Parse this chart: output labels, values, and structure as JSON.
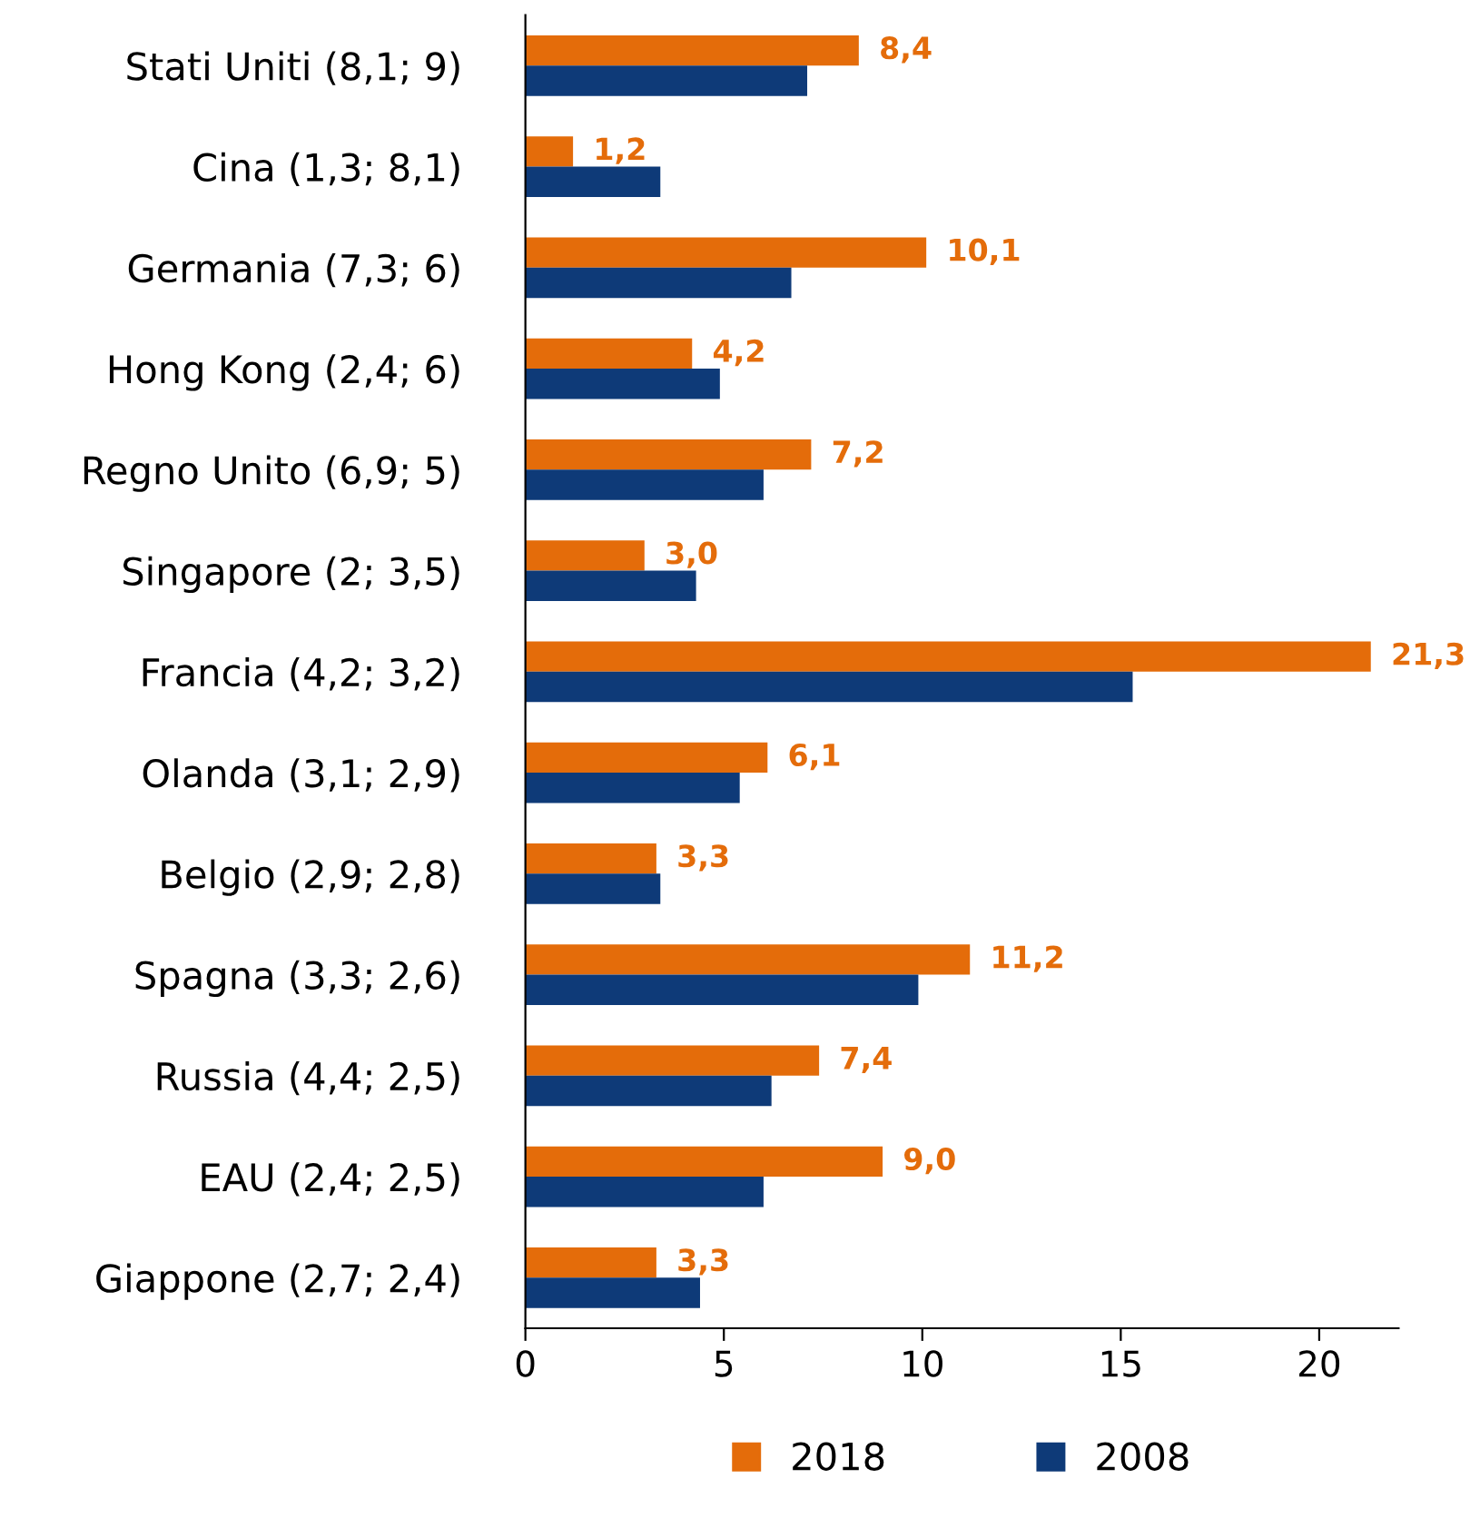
{
  "chart_data": {
    "type": "bar",
    "orientation": "horizontal",
    "categories": [
      "Stati Uniti (8,1; 9)",
      "Cina (1,3; 8,1)",
      "Germania (7,3; 6)",
      "Hong Kong (2,4; 6)",
      "Regno Unito (6,9; 5)",
      "Singapore (2; 3,5)",
      "Francia (4,2; 3,2)",
      "Olanda (3,1; 2,9)",
      "Belgio (2,9; 2,8)",
      "Spagna (3,3; 2,6)",
      "Russia (4,4; 2,5)",
      "EAU (2,4; 2,5)",
      "Giappone (2,7; 2,4)"
    ],
    "series": [
      {
        "name": "2018",
        "color": "#e46c0a",
        "values": [
          8.4,
          1.2,
          10.1,
          4.2,
          7.2,
          3.0,
          21.3,
          6.1,
          3.3,
          11.2,
          7.4,
          9.0,
          3.3
        ],
        "value_labels": [
          "8,4",
          "1,2",
          "10,1",
          "4,2",
          "7,2",
          "3,0",
          "21,3",
          "6,1",
          "3,3",
          "11,2",
          "7,4",
          "9,0",
          "3,3"
        ]
      },
      {
        "name": "2008",
        "color": "#0e3a78",
        "values": [
          7.1,
          3.4,
          6.7,
          4.9,
          6.0,
          4.3,
          15.3,
          5.4,
          3.4,
          9.9,
          6.2,
          6.0,
          4.4
        ]
      }
    ],
    "xlim": [
      0,
      22
    ],
    "xticks": [
      0,
      5,
      10,
      15,
      20
    ],
    "grid": false,
    "legend": "bottom"
  }
}
